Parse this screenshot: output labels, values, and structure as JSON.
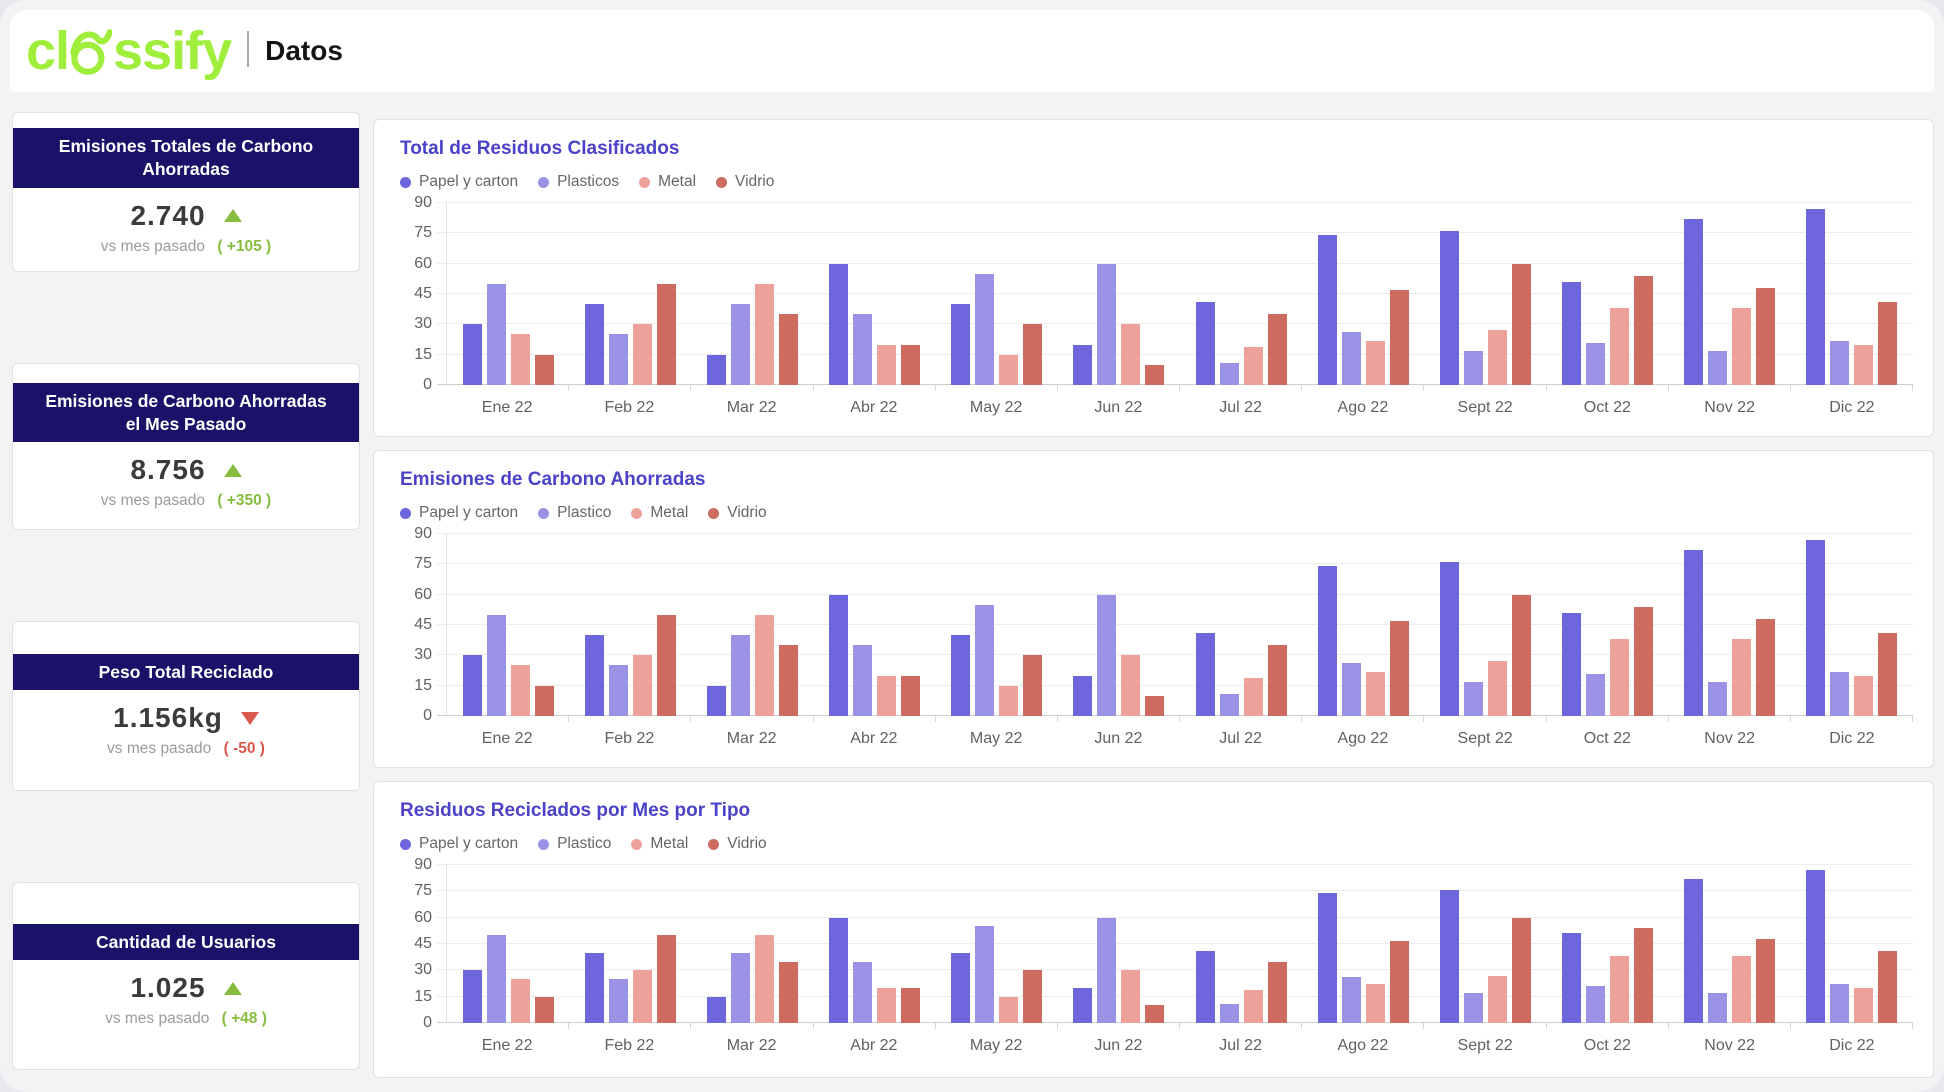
{
  "header": {
    "brand_prefix": "cl",
    "brand_suffix": "ssify",
    "brand": "classify",
    "title": "Datos"
  },
  "colors": {
    "brand_green": "#9fee3b",
    "navy_header": "#1a1168",
    "chart_title_accent": "#4a43c8",
    "positive": "#86bd3f",
    "negative": "#d9584c",
    "papel": "#6d66dd",
    "plastico": "#9a93e5",
    "metal": "#eca29a",
    "vidrio": "#cd6b61"
  },
  "kpis": [
    {
      "title": "Emisiones Totales de Carbono Ahorradas",
      "value": "2.740",
      "trend": "up",
      "compare_label": "vs mes pasado",
      "delta": "( +105 )"
    },
    {
      "title": "Emisiones de Carbono Ahorradas el Mes Pasado",
      "value": "8.756",
      "trend": "up",
      "compare_label": "vs mes pasado",
      "delta": "( +350 )"
    },
    {
      "title": "Peso Total Reciclado",
      "value": "1.156kg",
      "trend": "down",
      "compare_label": "vs mes pasado",
      "delta": "( -50 )"
    },
    {
      "title": "Cantidad de Usuarios",
      "value": "1.025",
      "trend": "up",
      "compare_label": "vs mes pasado",
      "delta": "( +48 )"
    }
  ],
  "chart_data": [
    {
      "type": "bar",
      "title": "Total de Residuos Clasificados",
      "categories": [
        "Ene 22",
        "Feb 22",
        "Mar 22",
        "Abr 22",
        "May 22",
        "Jun 22",
        "Jul 22",
        "Ago 22",
        "Sept 22",
        "Oct 22",
        "Nov 22",
        "Dic 22"
      ],
      "series": [
        {
          "name": "Papel y carton",
          "color": "#6d66dd",
          "values": [
            30,
            40,
            15,
            60,
            40,
            20,
            41,
            74,
            76,
            51,
            82,
            87
          ]
        },
        {
          "name": "Plasticos",
          "color": "#9a93e5",
          "values": [
            50,
            25,
            40,
            35,
            55,
            60,
            11,
            26,
            17,
            21,
            17,
            22
          ]
        },
        {
          "name": "Metal",
          "color": "#eca29a",
          "values": [
            25,
            30,
            50,
            20,
            15,
            30,
            19,
            22,
            27,
            38,
            38,
            20
          ]
        },
        {
          "name": "Vidrio",
          "color": "#cd6b61",
          "values": [
            15,
            50,
            35,
            20,
            30,
            10,
            35,
            47,
            60,
            54,
            48,
            41
          ]
        }
      ],
      "xlabel": "",
      "ylabel": "",
      "ylim": [
        0,
        90
      ],
      "yticks": [
        0,
        15,
        30,
        45,
        60,
        75,
        90
      ],
      "grid": true,
      "legend_position": "top-left"
    },
    {
      "type": "bar",
      "title": "Emisiones de Carbono Ahorradas",
      "categories": [
        "Ene 22",
        "Feb 22",
        "Mar 22",
        "Abr 22",
        "May 22",
        "Jun 22",
        "Jul 22",
        "Ago 22",
        "Sept 22",
        "Oct 22",
        "Nov 22",
        "Dic 22"
      ],
      "series": [
        {
          "name": "Papel y carton",
          "color": "#6d66dd",
          "values": [
            30,
            40,
            15,
            60,
            40,
            20,
            41,
            74,
            76,
            51,
            82,
            87
          ]
        },
        {
          "name": "Plastico",
          "color": "#9a93e5",
          "values": [
            50,
            25,
            40,
            35,
            55,
            60,
            11,
            26,
            17,
            21,
            17,
            22
          ]
        },
        {
          "name": "Metal",
          "color": "#eca29a",
          "values": [
            25,
            30,
            50,
            20,
            15,
            30,
            19,
            22,
            27,
            38,
            38,
            20
          ]
        },
        {
          "name": "Vidrio",
          "color": "#cd6b61",
          "values": [
            15,
            50,
            35,
            20,
            30,
            10,
            35,
            47,
            60,
            54,
            48,
            41
          ]
        }
      ],
      "xlabel": "",
      "ylabel": "",
      "ylim": [
        0,
        90
      ],
      "yticks": [
        0,
        15,
        30,
        45,
        60,
        75,
        90
      ],
      "grid": true,
      "legend_position": "top-left"
    },
    {
      "type": "bar",
      "title": "Residuos Reciclados por Mes por Tipo",
      "categories": [
        "Ene 22",
        "Feb 22",
        "Mar 22",
        "Abr 22",
        "May 22",
        "Jun 22",
        "Jul 22",
        "Ago 22",
        "Sept 22",
        "Oct 22",
        "Nov 22",
        "Dic 22"
      ],
      "series": [
        {
          "name": "Papel y carton",
          "color": "#6d66dd",
          "values": [
            30,
            40,
            15,
            60,
            40,
            20,
            41,
            74,
            76,
            51,
            82,
            87
          ]
        },
        {
          "name": "Plastico",
          "color": "#9a93e5",
          "values": [
            50,
            25,
            40,
            35,
            55,
            60,
            11,
            26,
            17,
            21,
            17,
            22
          ]
        },
        {
          "name": "Metal",
          "color": "#eca29a",
          "values": [
            25,
            30,
            50,
            20,
            15,
            30,
            19,
            22,
            27,
            38,
            38,
            20
          ]
        },
        {
          "name": "Vidrio",
          "color": "#cd6b61",
          "values": [
            15,
            50,
            35,
            20,
            30,
            10,
            35,
            47,
            60,
            54,
            48,
            41
          ]
        }
      ],
      "xlabel": "",
      "ylabel": "",
      "ylim": [
        0,
        90
      ],
      "yticks": [
        0,
        15,
        30,
        45,
        60,
        75,
        90
      ],
      "grid": true,
      "legend_position": "top-left"
    }
  ]
}
